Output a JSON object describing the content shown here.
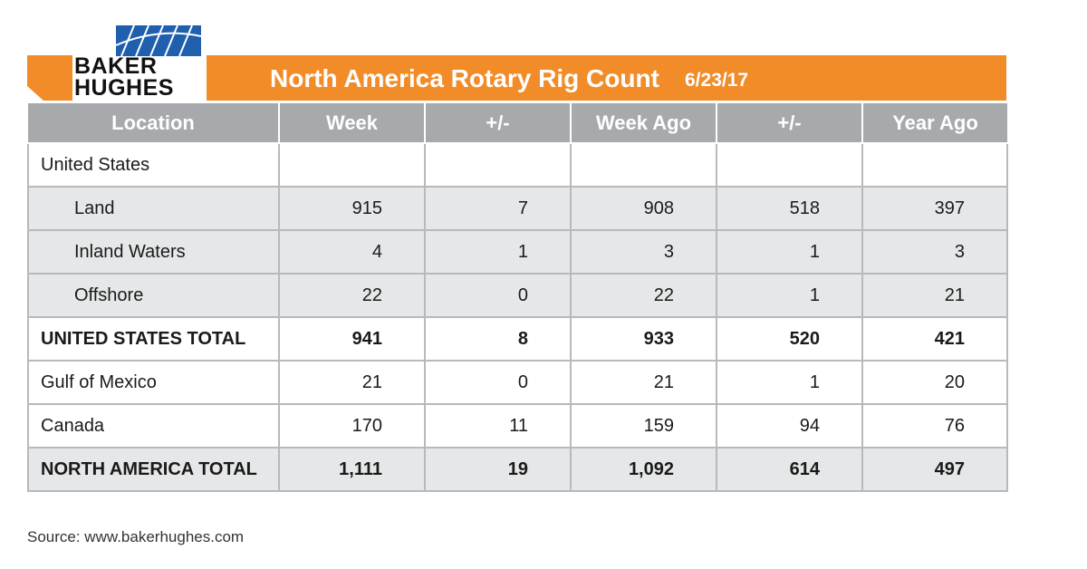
{
  "brand": {
    "line1": "BAKER",
    "line2": "HUGHES",
    "logo_icon": "bh-logo-icon",
    "accent_color": "#f28c28",
    "logo_color": "#1f5fad"
  },
  "header": {
    "title": "North America Rotary Rig Count",
    "date": "6/23/17"
  },
  "chart_data": {
    "type": "table",
    "columns": [
      "Location",
      "Week",
      "+/-",
      "Week Ago",
      "+/-",
      "Year Ago"
    ],
    "rows": [
      {
        "location": "United States",
        "values": [
          "",
          "",
          "",
          "",
          ""
        ],
        "indent": false,
        "bold": false,
        "shaded": false
      },
      {
        "location": "Land",
        "values": [
          "915",
          "7",
          "908",
          "518",
          "397"
        ],
        "indent": true,
        "bold": false,
        "shaded": true
      },
      {
        "location": "Inland Waters",
        "values": [
          "4",
          "1",
          "3",
          "1",
          "3"
        ],
        "indent": true,
        "bold": false,
        "shaded": true
      },
      {
        "location": "Offshore",
        "values": [
          "22",
          "0",
          "22",
          "1",
          "21"
        ],
        "indent": true,
        "bold": false,
        "shaded": true
      },
      {
        "location": "UNITED STATES TOTAL",
        "values": [
          "941",
          "8",
          "933",
          "520",
          "421"
        ],
        "indent": false,
        "bold": true,
        "shaded": false
      },
      {
        "location": "Gulf of Mexico",
        "values": [
          "21",
          "0",
          "21",
          "1",
          "20"
        ],
        "indent": false,
        "bold": false,
        "shaded": false
      },
      {
        "location": "Canada",
        "values": [
          "170",
          "11",
          "159",
          "94",
          "76"
        ],
        "indent": false,
        "bold": false,
        "shaded": false
      },
      {
        "location": "NORTH AMERICA TOTAL",
        "values": [
          "1,111",
          "19",
          "1,092",
          "614",
          "497"
        ],
        "indent": false,
        "bold": true,
        "shaded": true
      }
    ]
  },
  "footer": {
    "source": "Source: www.bakerhughes.com"
  }
}
